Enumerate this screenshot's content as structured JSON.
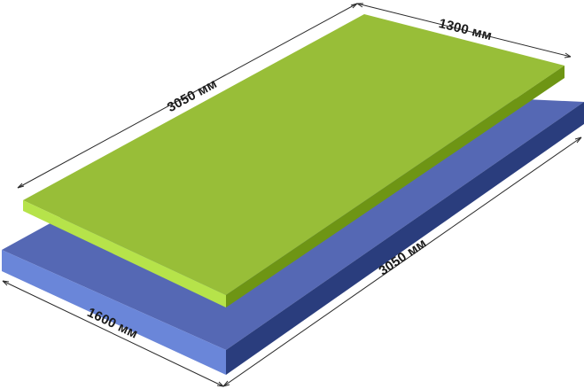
{
  "labels": {
    "top_length": "3050 мм",
    "top_width": "1300 мм",
    "bottom_length": "3050 мм",
    "bottom_width": "1600 мм"
  },
  "colors": {
    "green_top": "#98be38",
    "green_side_light": "#b6e34a",
    "green_side_dark": "#6e9514",
    "blue_top": "#5568b4",
    "blue_side_light": "#6a86d9",
    "blue_side_dark": "#2a3d7d",
    "dimension_line": "#2b2b2b",
    "label_text": "#1a1a1a"
  }
}
